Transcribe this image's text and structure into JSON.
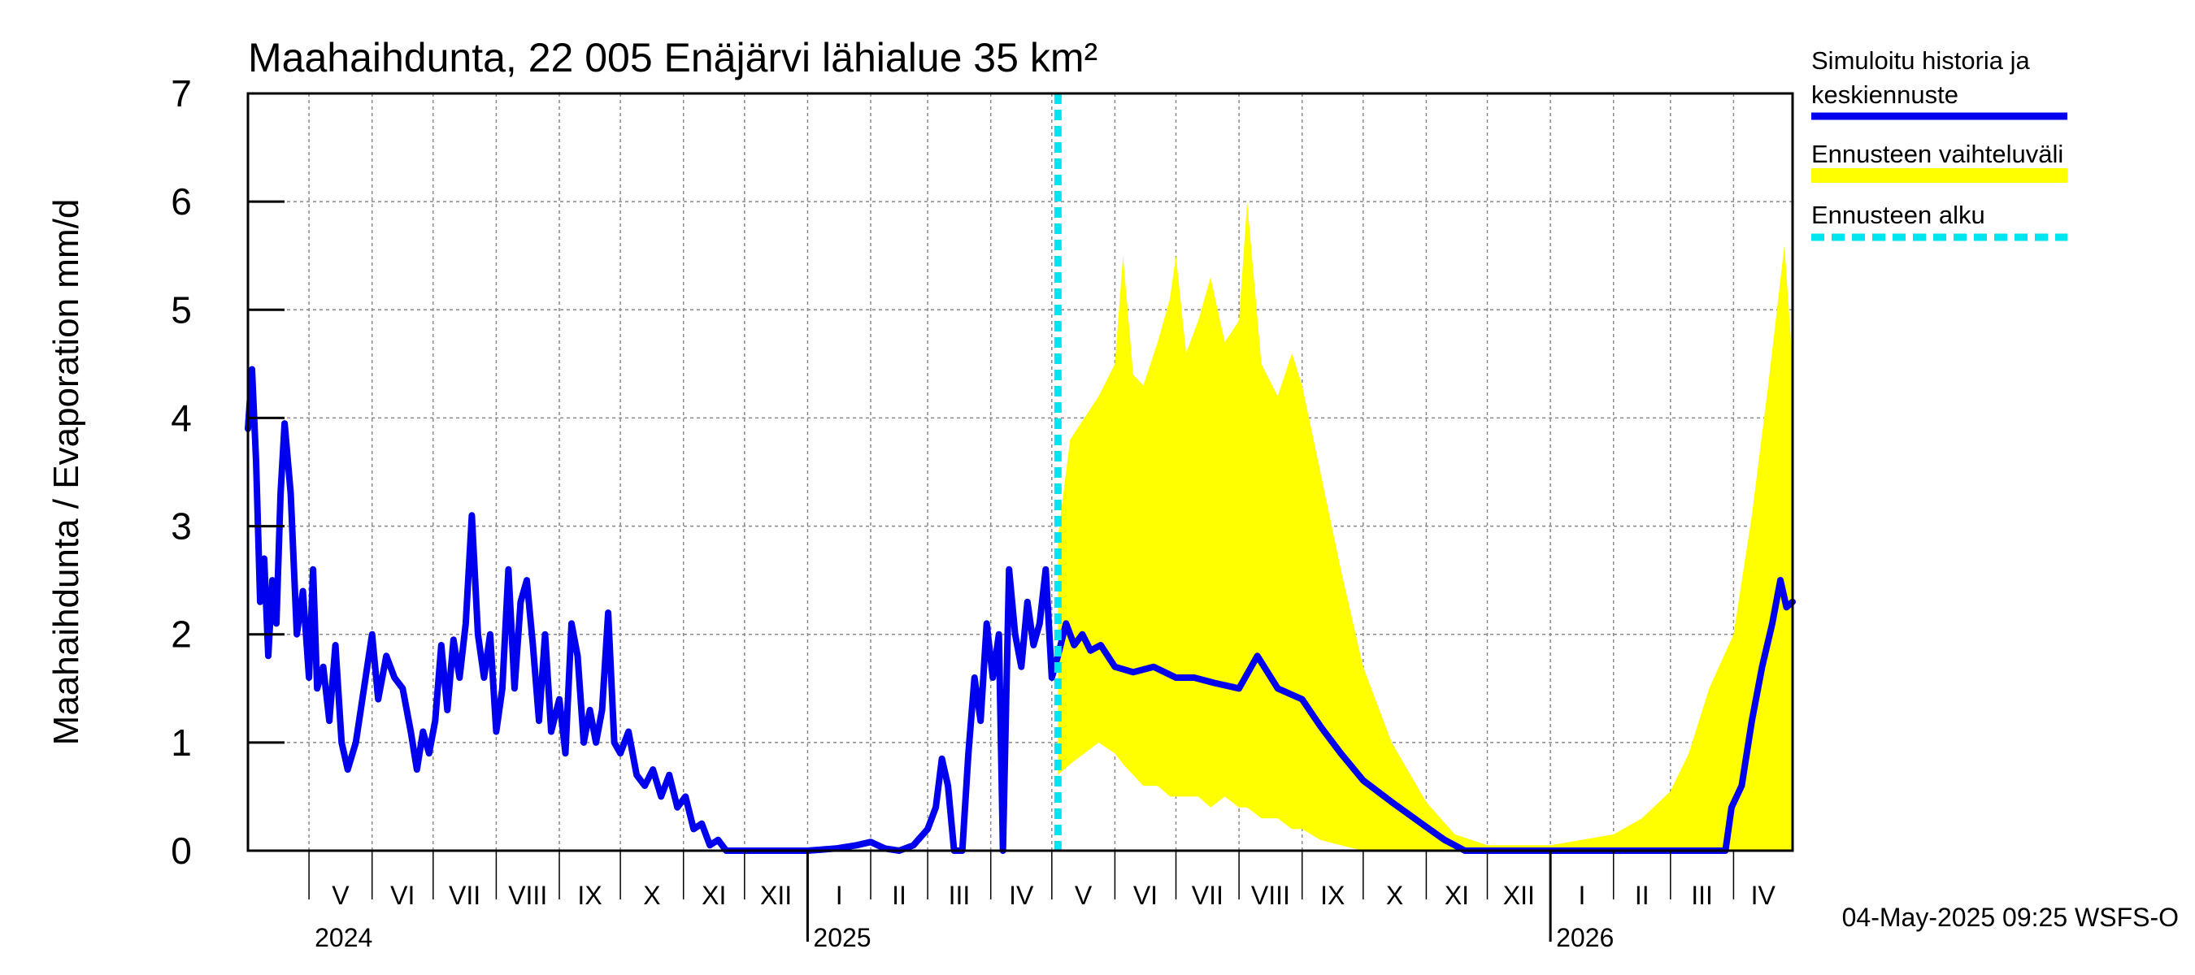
{
  "chart_data": {
    "type": "line",
    "title": "Maahaihdunta, 22 005 Enäjärvi lähialue 35 km²",
    "ylabel": "Maahaihdunta / Evaporation   mm/d",
    "ylim": [
      0,
      7
    ],
    "yticks": [
      "0",
      "1",
      "2",
      "3",
      "4",
      "5",
      "6",
      "7"
    ],
    "xlim": [
      "2024-04-01",
      "2026-04-30"
    ],
    "grid": true,
    "forecast_start": "2025-05-04",
    "months": [
      {
        "label": "V",
        "start": "2024-05-01"
      },
      {
        "label": "VI",
        "start": "2024-06-01"
      },
      {
        "label": "VII",
        "start": "2024-07-01"
      },
      {
        "label": "VIII",
        "start": "2024-08-01"
      },
      {
        "label": "IX",
        "start": "2024-09-01"
      },
      {
        "label": "X",
        "start": "2024-10-01"
      },
      {
        "label": "XI",
        "start": "2024-11-01"
      },
      {
        "label": "XII",
        "start": "2024-12-01"
      },
      {
        "label": "I",
        "start": "2025-01-01"
      },
      {
        "label": "II",
        "start": "2025-02-01"
      },
      {
        "label": "III",
        "start": "2025-03-01"
      },
      {
        "label": "IV",
        "start": "2025-04-01"
      },
      {
        "label": "V",
        "start": "2025-05-01"
      },
      {
        "label": "VI",
        "start": "2025-06-01"
      },
      {
        "label": "VII",
        "start": "2025-07-01"
      },
      {
        "label": "VIII",
        "start": "2025-08-01"
      },
      {
        "label": "IX",
        "start": "2025-09-01"
      },
      {
        "label": "X",
        "start": "2025-10-01"
      },
      {
        "label": "XI",
        "start": "2025-11-01"
      },
      {
        "label": "XII",
        "start": "2025-12-01"
      },
      {
        "label": "I",
        "start": "2026-01-01"
      },
      {
        "label": "II",
        "start": "2026-02-01"
      },
      {
        "label": "III",
        "start": "2026-03-01"
      },
      {
        "label": "IV",
        "start": "2026-04-01"
      }
    ],
    "years": [
      {
        "label": "2024",
        "start": "2024-05-01"
      },
      {
        "label": "2025",
        "start": "2025-01-01"
      },
      {
        "label": "2026",
        "start": "2026-01-01"
      }
    ],
    "series": [
      {
        "name": "Simuloitu historia ja keskiennuste",
        "color": "#0000ee",
        "points": [
          [
            "2024-04-01",
            3.9
          ],
          [
            "2024-04-03",
            4.45
          ],
          [
            "2024-04-05",
            3.6
          ],
          [
            "2024-04-07",
            2.3
          ],
          [
            "2024-04-09",
            2.7
          ],
          [
            "2024-04-11",
            1.8
          ],
          [
            "2024-04-13",
            2.5
          ],
          [
            "2024-04-15",
            2.1
          ],
          [
            "2024-04-17",
            3.3
          ],
          [
            "2024-04-19",
            3.95
          ],
          [
            "2024-04-22",
            3.3
          ],
          [
            "2024-04-25",
            2.0
          ],
          [
            "2024-04-28",
            2.4
          ],
          [
            "2024-05-01",
            1.6
          ],
          [
            "2024-05-03",
            2.6
          ],
          [
            "2024-05-05",
            1.5
          ],
          [
            "2024-05-08",
            1.7
          ],
          [
            "2024-05-11",
            1.2
          ],
          [
            "2024-05-14",
            1.9
          ],
          [
            "2024-05-17",
            1.0
          ],
          [
            "2024-05-20",
            0.75
          ],
          [
            "2024-05-24",
            1.0
          ],
          [
            "2024-05-28",
            1.5
          ],
          [
            "2024-06-01",
            2.0
          ],
          [
            "2024-06-04",
            1.4
          ],
          [
            "2024-06-08",
            1.8
          ],
          [
            "2024-06-12",
            1.6
          ],
          [
            "2024-06-16",
            1.5
          ],
          [
            "2024-06-20",
            1.1
          ],
          [
            "2024-06-23",
            0.75
          ],
          [
            "2024-06-26",
            1.1
          ],
          [
            "2024-06-29",
            0.9
          ],
          [
            "2024-07-02",
            1.2
          ],
          [
            "2024-07-05",
            1.9
          ],
          [
            "2024-07-08",
            1.3
          ],
          [
            "2024-07-11",
            1.95
          ],
          [
            "2024-07-14",
            1.6
          ],
          [
            "2024-07-17",
            2.1
          ],
          [
            "2024-07-20",
            3.1
          ],
          [
            "2024-07-23",
            2.0
          ],
          [
            "2024-07-26",
            1.6
          ],
          [
            "2024-07-29",
            2.0
          ],
          [
            "2024-08-01",
            1.1
          ],
          [
            "2024-08-04",
            1.5
          ],
          [
            "2024-08-07",
            2.6
          ],
          [
            "2024-08-10",
            1.5
          ],
          [
            "2024-08-13",
            2.3
          ],
          [
            "2024-08-16",
            2.5
          ],
          [
            "2024-08-19",
            1.9
          ],
          [
            "2024-08-22",
            1.2
          ],
          [
            "2024-08-25",
            2.0
          ],
          [
            "2024-08-28",
            1.1
          ],
          [
            "2024-09-01",
            1.4
          ],
          [
            "2024-09-04",
            0.9
          ],
          [
            "2024-09-07",
            2.1
          ],
          [
            "2024-09-10",
            1.8
          ],
          [
            "2024-09-13",
            1.0
          ],
          [
            "2024-09-16",
            1.3
          ],
          [
            "2024-09-19",
            1.0
          ],
          [
            "2024-09-22",
            1.3
          ],
          [
            "2024-09-25",
            2.2
          ],
          [
            "2024-09-28",
            1.0
          ],
          [
            "2024-10-01",
            0.9
          ],
          [
            "2024-10-05",
            1.1
          ],
          [
            "2024-10-09",
            0.7
          ],
          [
            "2024-10-13",
            0.6
          ],
          [
            "2024-10-17",
            0.75
          ],
          [
            "2024-10-21",
            0.5
          ],
          [
            "2024-10-25",
            0.7
          ],
          [
            "2024-10-29",
            0.4
          ],
          [
            "2024-11-02",
            0.5
          ],
          [
            "2024-11-06",
            0.2
          ],
          [
            "2024-11-10",
            0.25
          ],
          [
            "2024-11-14",
            0.05
          ],
          [
            "2024-11-18",
            0.1
          ],
          [
            "2024-11-22",
            0.0
          ],
          [
            "2024-12-01",
            0.0
          ],
          [
            "2024-12-15",
            0.0
          ],
          [
            "2025-01-01",
            0.0
          ],
          [
            "2025-01-15",
            0.02
          ],
          [
            "2025-01-25",
            0.05
          ],
          [
            "2025-02-01",
            0.08
          ],
          [
            "2025-02-08",
            0.02
          ],
          [
            "2025-02-15",
            0.0
          ],
          [
            "2025-02-22",
            0.05
          ],
          [
            "2025-03-01",
            0.2
          ],
          [
            "2025-03-05",
            0.4
          ],
          [
            "2025-03-08",
            0.85
          ],
          [
            "2025-03-11",
            0.6
          ],
          [
            "2025-03-14",
            0.0
          ],
          [
            "2025-03-18",
            0.0
          ],
          [
            "2025-03-21",
            0.9
          ],
          [
            "2025-03-24",
            1.6
          ],
          [
            "2025-03-27",
            1.2
          ],
          [
            "2025-03-30",
            2.1
          ],
          [
            "2025-04-02",
            1.6
          ],
          [
            "2025-04-05",
            2.0
          ],
          [
            "2025-04-07",
            0.0
          ],
          [
            "2025-04-10",
            2.6
          ],
          [
            "2025-04-13",
            2.0
          ],
          [
            "2025-04-16",
            1.7
          ],
          [
            "2025-04-19",
            2.3
          ],
          [
            "2025-04-22",
            1.9
          ],
          [
            "2025-04-25",
            2.1
          ],
          [
            "2025-04-28",
            2.6
          ],
          [
            "2025-05-01",
            1.6
          ],
          [
            "2025-05-04",
            1.8
          ],
          [
            "2025-05-08",
            2.1
          ],
          [
            "2025-05-12",
            1.9
          ],
          [
            "2025-05-16",
            2.0
          ],
          [
            "2025-05-20",
            1.85
          ],
          [
            "2025-05-25",
            1.9
          ],
          [
            "2025-06-01",
            1.7
          ],
          [
            "2025-06-10",
            1.65
          ],
          [
            "2025-06-20",
            1.7
          ],
          [
            "2025-07-01",
            1.6
          ],
          [
            "2025-07-10",
            1.6
          ],
          [
            "2025-07-20",
            1.55
          ],
          [
            "2025-08-01",
            1.5
          ],
          [
            "2025-08-10",
            1.8
          ],
          [
            "2025-08-20",
            1.5
          ],
          [
            "2025-09-01",
            1.4
          ],
          [
            "2025-09-10",
            1.15
          ],
          [
            "2025-09-20",
            0.9
          ],
          [
            "2025-10-01",
            0.65
          ],
          [
            "2025-10-15",
            0.45
          ],
          [
            "2025-11-01",
            0.22
          ],
          [
            "2025-11-10",
            0.1
          ],
          [
            "2025-11-20",
            0.0
          ],
          [
            "2025-12-01",
            0.0
          ],
          [
            "2026-01-01",
            0.0
          ],
          [
            "2026-02-01",
            0.0
          ],
          [
            "2026-03-01",
            0.0
          ],
          [
            "2026-03-28",
            0.0
          ],
          [
            "2026-03-31",
            0.4
          ],
          [
            "2026-04-05",
            0.6
          ],
          [
            "2026-04-10",
            1.2
          ],
          [
            "2026-04-15",
            1.7
          ],
          [
            "2026-04-20",
            2.1
          ],
          [
            "2026-04-24",
            2.5
          ],
          [
            "2026-04-27",
            2.25
          ],
          [
            "2026-04-30",
            2.3
          ]
        ]
      },
      {
        "name": "Ennusteen vaihteluväli",
        "color": "#ffff00",
        "band": [
          [
            "2025-05-04",
            0.7,
            2.9
          ],
          [
            "2025-05-10",
            0.8,
            3.8
          ],
          [
            "2025-05-17",
            0.9,
            4.0
          ],
          [
            "2025-05-24",
            1.0,
            4.2
          ],
          [
            "2025-06-01",
            0.9,
            4.5
          ],
          [
            "2025-06-05",
            0.8,
            5.5
          ],
          [
            "2025-06-10",
            0.7,
            4.4
          ],
          [
            "2025-06-15",
            0.6,
            4.3
          ],
          [
            "2025-06-22",
            0.6,
            4.7
          ],
          [
            "2025-06-28",
            0.5,
            5.1
          ],
          [
            "2025-07-01",
            0.5,
            5.5
          ],
          [
            "2025-07-06",
            0.5,
            4.6
          ],
          [
            "2025-07-12",
            0.5,
            4.9
          ],
          [
            "2025-07-18",
            0.4,
            5.3
          ],
          [
            "2025-07-25",
            0.5,
            4.7
          ],
          [
            "2025-08-01",
            0.4,
            4.9
          ],
          [
            "2025-08-05",
            0.4,
            6.0
          ],
          [
            "2025-08-12",
            0.3,
            4.5
          ],
          [
            "2025-08-20",
            0.3,
            4.2
          ],
          [
            "2025-08-27",
            0.2,
            4.6
          ],
          [
            "2025-09-01",
            0.2,
            4.3
          ],
          [
            "2025-09-10",
            0.1,
            3.5
          ],
          [
            "2025-09-20",
            0.05,
            2.6
          ],
          [
            "2025-10-01",
            0.0,
            1.7
          ],
          [
            "2025-10-15",
            0.0,
            1.0
          ],
          [
            "2025-11-01",
            0.0,
            0.45
          ],
          [
            "2025-11-15",
            0.0,
            0.15
          ],
          [
            "2025-12-01",
            0.0,
            0.05
          ],
          [
            "2026-01-01",
            0.0,
            0.05
          ],
          [
            "2026-02-01",
            0.0,
            0.15
          ],
          [
            "2026-02-15",
            0.0,
            0.3
          ],
          [
            "2026-03-01",
            0.0,
            0.55
          ],
          [
            "2026-03-10",
            0.0,
            0.9
          ],
          [
            "2026-03-20",
            0.0,
            1.5
          ],
          [
            "2026-04-01",
            0.0,
            2.0
          ],
          [
            "2026-04-10",
            0.0,
            3.1
          ],
          [
            "2026-04-18",
            0.0,
            4.3
          ],
          [
            "2026-04-26",
            0.0,
            5.6
          ],
          [
            "2026-04-30",
            0.0,
            4.5
          ]
        ]
      },
      {
        "name": "Ennusteen alku",
        "color": "#00e5ee"
      }
    ],
    "footer": "04-May-2025 09:25 WSFS-O"
  }
}
